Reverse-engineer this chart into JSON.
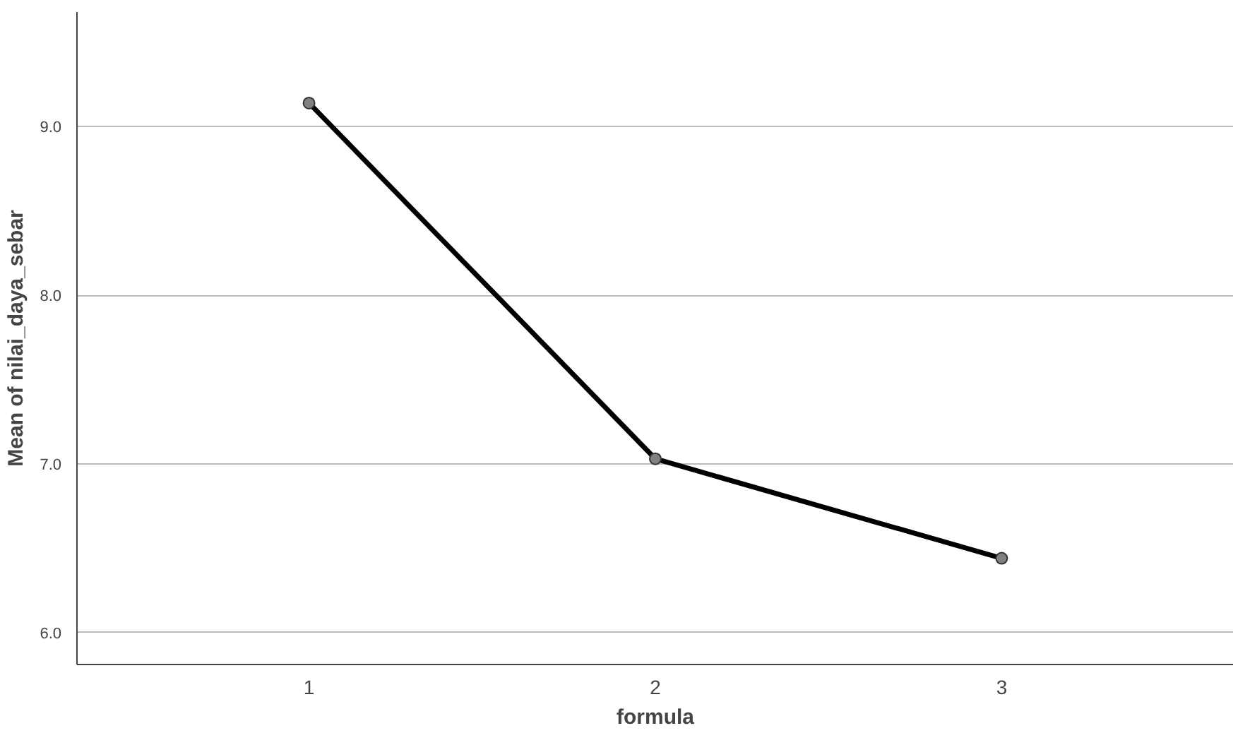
{
  "chart_data": {
    "type": "line",
    "xlabel": "formula",
    "ylabel": "Mean of nilai_daya_sebar",
    "categories": [
      "1",
      "2",
      "3"
    ],
    "series": [
      {
        "color": "#000000",
        "values": [
          9.14,
          7.03,
          6.44
        ]
      }
    ],
    "ylim": [
      5.81,
      9.68
    ],
    "yticks": [
      {
        "value": 6,
        "label": "6.0"
      },
      {
        "value": 7,
        "label": "7.0"
      },
      {
        "value": 8,
        "label": "8.0"
      },
      {
        "value": 9,
        "label": "9.0"
      }
    ],
    "grid": "y",
    "marker": "circle",
    "line_style": "solid"
  }
}
